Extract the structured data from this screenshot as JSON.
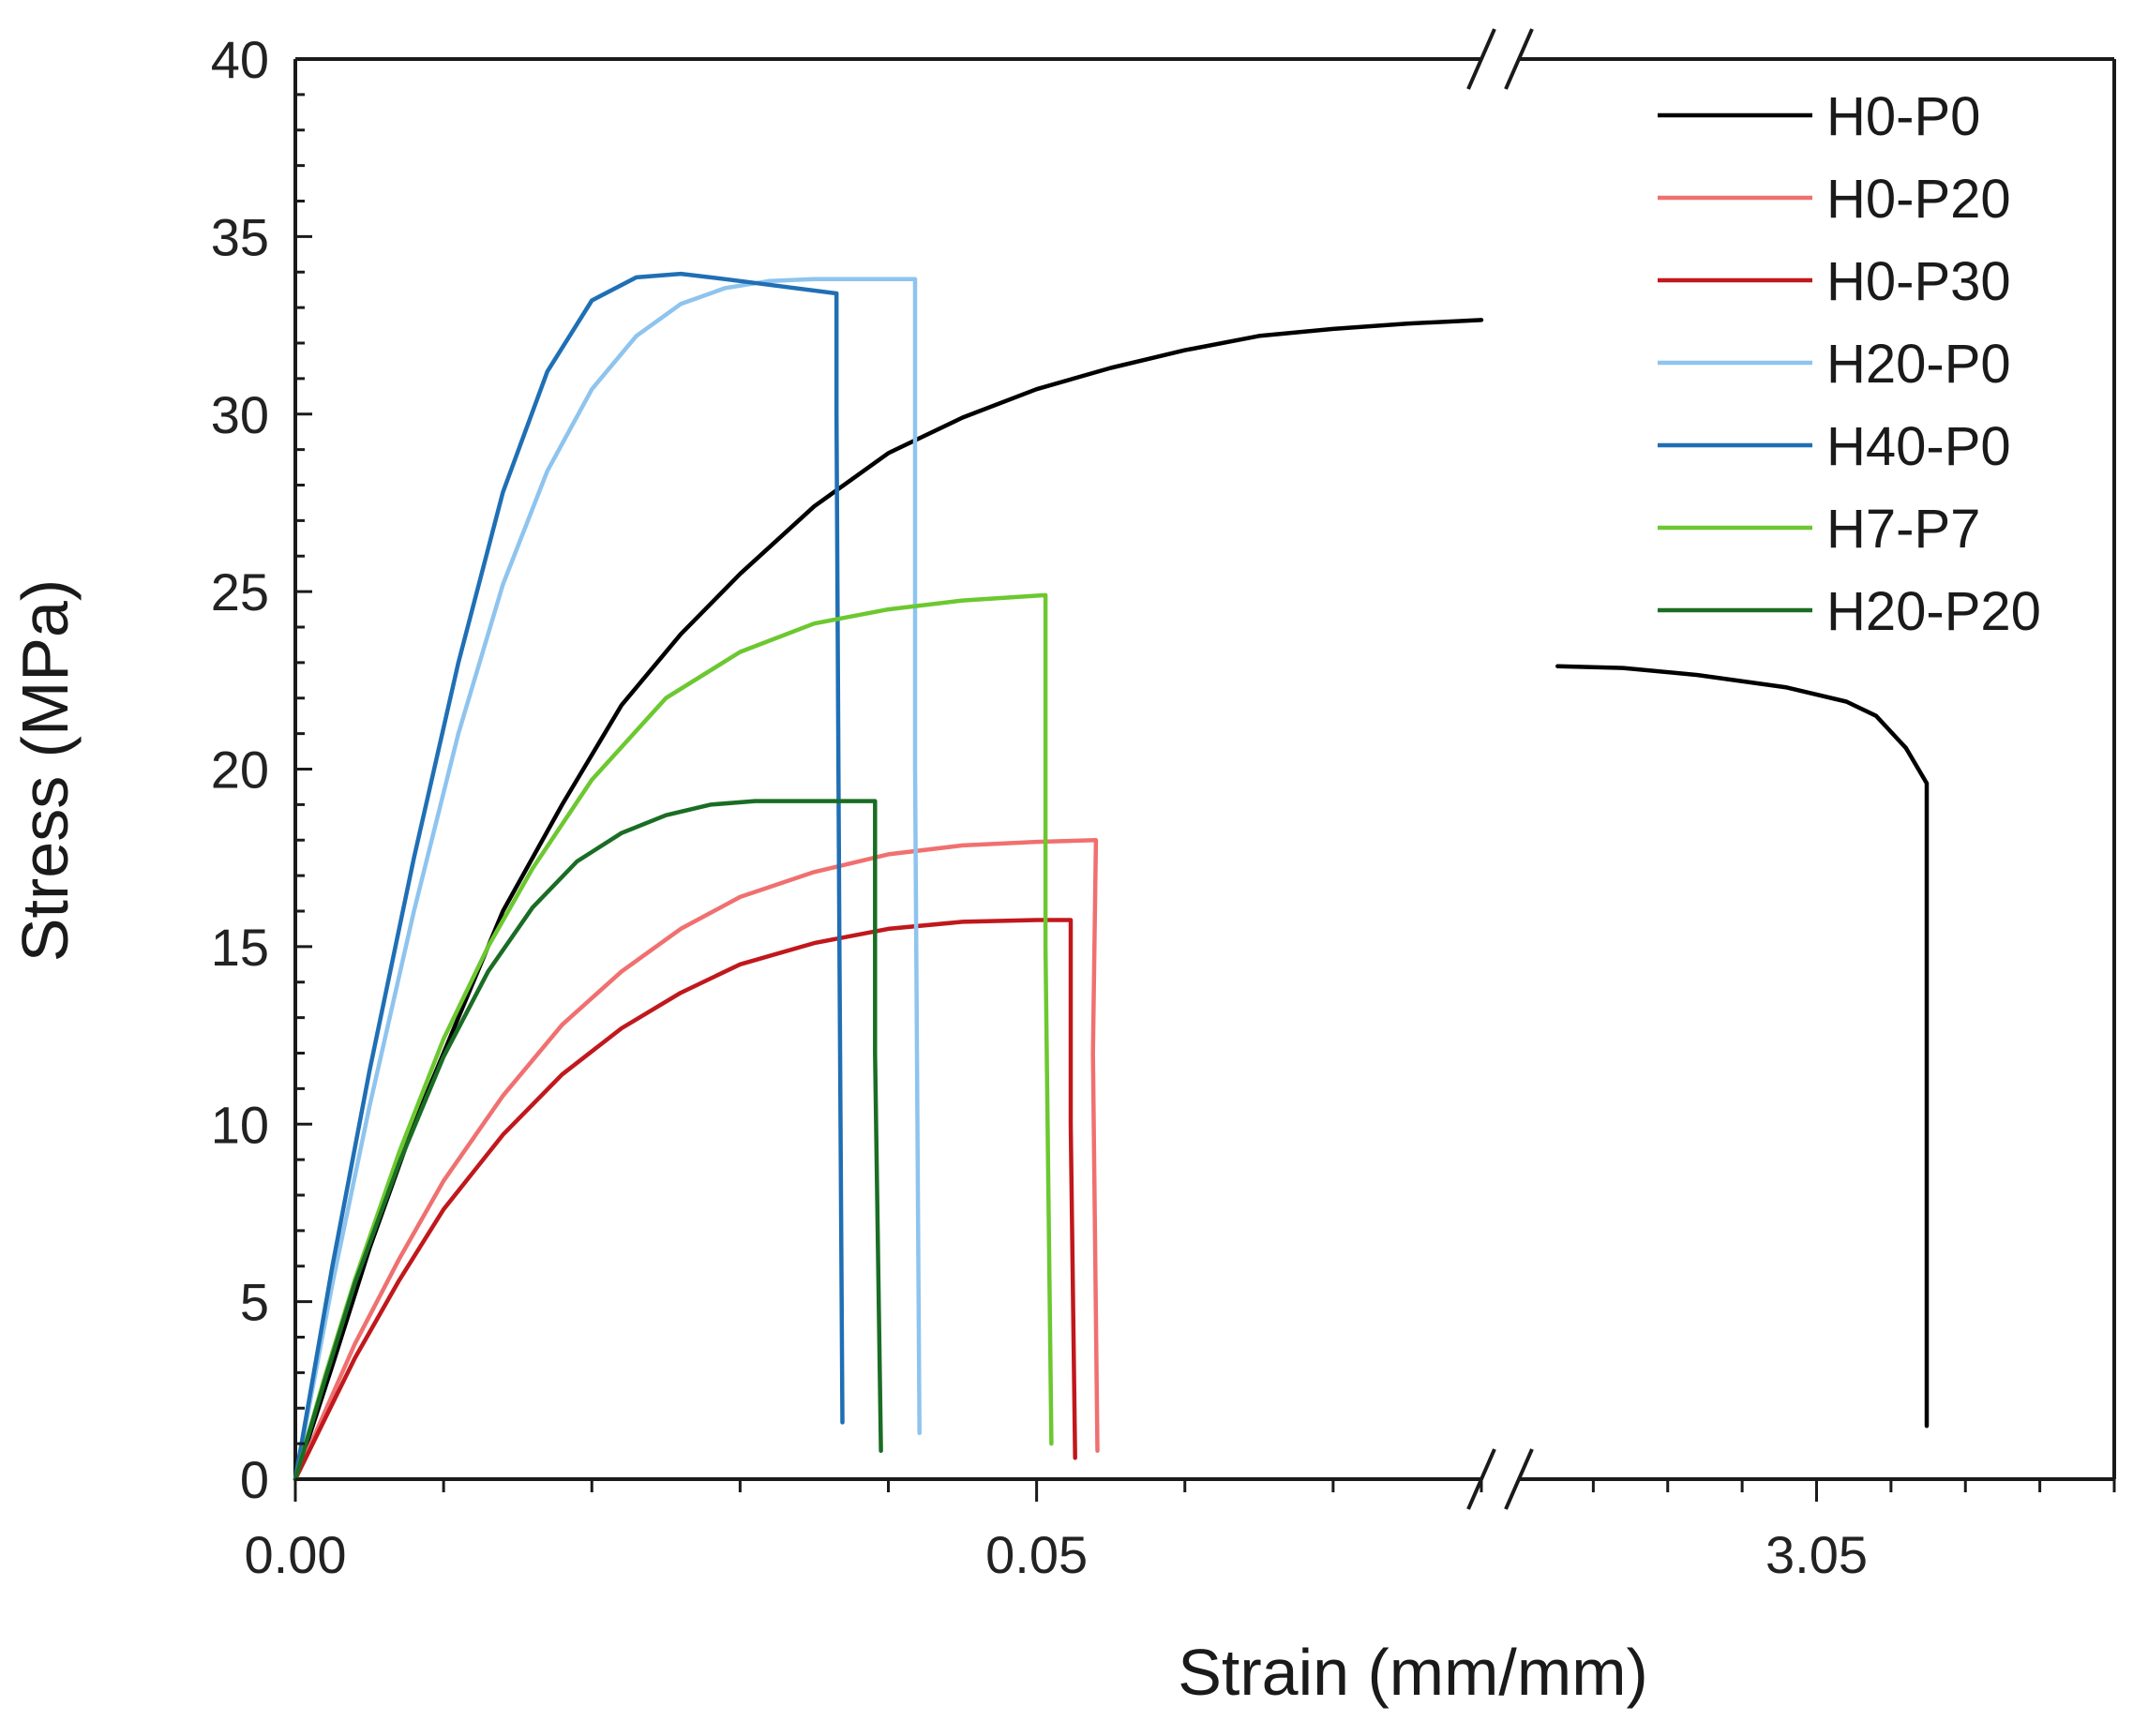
{
  "chart_data": {
    "type": "line",
    "title": "",
    "xlabel": "Strain (mm/mm)",
    "ylabel": "Stress (MPa)",
    "ylim": [
      0,
      40
    ],
    "y_ticks": [
      "0",
      "5",
      "10",
      "15",
      "20",
      "25",
      "30",
      "35",
      "40"
    ],
    "x_segments": [
      {
        "xlim": [
          0.0,
          0.08
        ],
        "tick_labels": [
          {
            "value": 0.0,
            "label": "0.00"
          },
          {
            "value": 0.05,
            "label": "0.05"
          }
        ]
      },
      {
        "xlim": [
          3.04,
          3.06
        ],
        "tick_labels": [
          {
            "value": 3.05,
            "label": "3.05"
          }
        ]
      }
    ],
    "axis_break": "between segments",
    "grid": false,
    "legend_position": "top-right",
    "series": [
      {
        "name": "H0-P0",
        "color": "#000000",
        "points": [
          [
            0,
            0
          ],
          [
            0.0025,
            3.2
          ],
          [
            0.005,
            6.5
          ],
          [
            0.008,
            10
          ],
          [
            0.011,
            13
          ],
          [
            0.014,
            16
          ],
          [
            0.018,
            19
          ],
          [
            0.022,
            21.8
          ],
          [
            0.026,
            23.8
          ],
          [
            0.03,
            25.5
          ],
          [
            0.035,
            27.4
          ],
          [
            0.04,
            28.9
          ],
          [
            0.045,
            29.9
          ],
          [
            0.05,
            30.7
          ],
          [
            0.055,
            31.3
          ],
          [
            0.06,
            31.8
          ],
          [
            0.065,
            32.2
          ],
          [
            0.07,
            32.4
          ],
          [
            0.075,
            32.55
          ],
          [
            0.08,
            32.65
          ]
        ],
        "points_after_break": [
          [
            3.0413,
            22.9
          ],
          [
            3.0435,
            22.85
          ],
          [
            3.046,
            22.65
          ],
          [
            3.049,
            22.3
          ],
          [
            3.051,
            21.9
          ],
          [
            3.052,
            21.5
          ],
          [
            3.053,
            20.6
          ],
          [
            3.0537,
            19.6
          ],
          [
            3.0537,
            1.5
          ]
        ]
      },
      {
        "name": "H0-P20",
        "color": "#f07070",
        "points": [
          [
            0,
            0
          ],
          [
            0.002,
            1.9
          ],
          [
            0.004,
            3.8
          ],
          [
            0.007,
            6.2
          ],
          [
            0.01,
            8.4
          ],
          [
            0.014,
            10.8
          ],
          [
            0.018,
            12.8
          ],
          [
            0.022,
            14.3
          ],
          [
            0.026,
            15.5
          ],
          [
            0.03,
            16.4
          ],
          [
            0.035,
            17.1
          ],
          [
            0.04,
            17.6
          ],
          [
            0.045,
            17.85
          ],
          [
            0.05,
            17.95
          ],
          [
            0.054,
            18
          ],
          [
            0.0538,
            12
          ],
          [
            0.0541,
            0.8
          ]
        ]
      },
      {
        "name": "H0-P30",
        "color": "#c0181c",
        "points": [
          [
            0,
            0
          ],
          [
            0.002,
            1.7
          ],
          [
            0.004,
            3.4
          ],
          [
            0.007,
            5.6
          ],
          [
            0.01,
            7.6
          ],
          [
            0.014,
            9.7
          ],
          [
            0.018,
            11.4
          ],
          [
            0.022,
            12.7
          ],
          [
            0.026,
            13.7
          ],
          [
            0.03,
            14.5
          ],
          [
            0.035,
            15.1
          ],
          [
            0.04,
            15.5
          ],
          [
            0.045,
            15.7
          ],
          [
            0.05,
            15.75
          ],
          [
            0.0523,
            15.75
          ],
          [
            0.0523,
            10
          ],
          [
            0.0526,
            0.6
          ]
        ]
      },
      {
        "name": "H20-P0",
        "color": "#8ec4ee",
        "points": [
          [
            0,
            0
          ],
          [
            0.0025,
            5.5
          ],
          [
            0.005,
            10.5
          ],
          [
            0.008,
            16
          ],
          [
            0.011,
            21
          ],
          [
            0.014,
            25.2
          ],
          [
            0.017,
            28.4
          ],
          [
            0.02,
            30.7
          ],
          [
            0.023,
            32.2
          ],
          [
            0.026,
            33.1
          ],
          [
            0.029,
            33.55
          ],
          [
            0.032,
            33.75
          ],
          [
            0.035,
            33.8
          ],
          [
            0.0418,
            33.8
          ],
          [
            0.0418,
            20
          ],
          [
            0.0421,
            1.3
          ]
        ]
      },
      {
        "name": "H40-P0",
        "color": "#1f6fb5",
        "points": [
          [
            0,
            0
          ],
          [
            0.0025,
            6
          ],
          [
            0.005,
            11.5
          ],
          [
            0.008,
            17.5
          ],
          [
            0.011,
            23
          ],
          [
            0.014,
            27.8
          ],
          [
            0.017,
            31.2
          ],
          [
            0.02,
            33.2
          ],
          [
            0.023,
            33.85
          ],
          [
            0.026,
            33.95
          ],
          [
            0.029,
            33.8
          ],
          [
            0.0365,
            33.4
          ],
          [
            0.0365,
            30
          ],
          [
            0.0367,
            15
          ],
          [
            0.0369,
            1.6
          ]
        ]
      },
      {
        "name": "H7-P7",
        "color": "#6cc830",
        "points": [
          [
            0,
            0
          ],
          [
            0.002,
            2.9
          ],
          [
            0.004,
            5.6
          ],
          [
            0.007,
            9.2
          ],
          [
            0.01,
            12.4
          ],
          [
            0.013,
            15
          ],
          [
            0.016,
            17.2
          ],
          [
            0.02,
            19.7
          ],
          [
            0.025,
            22
          ],
          [
            0.03,
            23.3
          ],
          [
            0.035,
            24.1
          ],
          [
            0.04,
            24.5
          ],
          [
            0.045,
            24.75
          ],
          [
            0.0506,
            24.9
          ],
          [
            0.0506,
            15
          ],
          [
            0.051,
            1
          ]
        ]
      },
      {
        "name": "H20-P20",
        "color": "#1a6d24",
        "points": [
          [
            0,
            0
          ],
          [
            0.002,
            2.8
          ],
          [
            0.004,
            5.5
          ],
          [
            0.007,
            8.9
          ],
          [
            0.01,
            11.9
          ],
          [
            0.013,
            14.3
          ],
          [
            0.016,
            16.1
          ],
          [
            0.019,
            17.4
          ],
          [
            0.022,
            18.2
          ],
          [
            0.025,
            18.7
          ],
          [
            0.028,
            19
          ],
          [
            0.031,
            19.1
          ],
          [
            0.0391,
            19.1
          ],
          [
            0.0391,
            12
          ],
          [
            0.0395,
            0.8
          ]
        ]
      }
    ]
  }
}
